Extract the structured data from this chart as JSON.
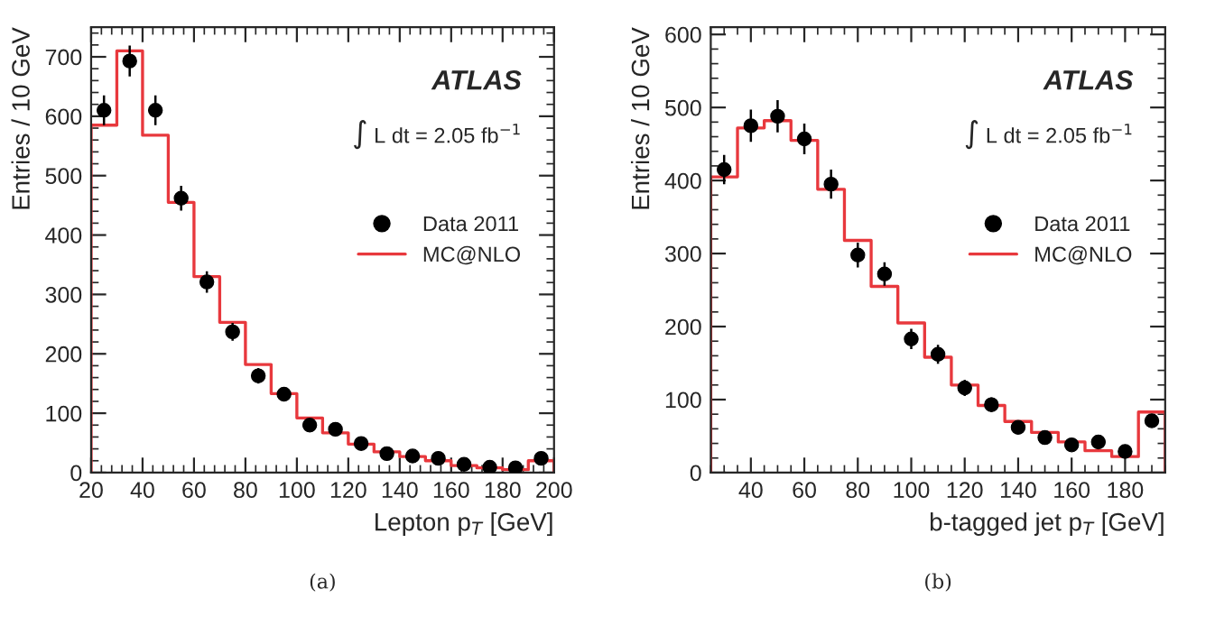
{
  "chart_data": [
    {
      "type": "histogram",
      "xlabel": "Lepton p$_{T}$ [GeV]",
      "ylabel": "Entries / 10 GeV",
      "bins": [
        20,
        30,
        40,
        50,
        60,
        70,
        80,
        90,
        100,
        110,
        120,
        130,
        140,
        150,
        160,
        170,
        180,
        190,
        200
      ],
      "series": [
        {
          "name": "Data 2011",
          "type": "scatter",
          "color": "#000000",
          "x": [
            25,
            35,
            45,
            55,
            65,
            75,
            85,
            95,
            105,
            115,
            125,
            135,
            145,
            155,
            165,
            175,
            185,
            195
          ],
          "values": [
            610,
            693,
            610,
            462,
            321,
            237,
            163,
            132,
            80,
            73,
            49,
            32,
            28,
            24,
            14,
            9,
            8,
            24
          ],
          "errors": [
            25,
            26,
            25,
            21,
            18,
            15,
            13,
            11,
            9,
            9,
            7,
            6,
            5,
            5,
            4,
            3,
            3,
            5
          ]
        },
        {
          "name": "MC@NLO",
          "color": "#e8383d",
          "values": [
            585,
            710,
            568,
            455,
            330,
            253,
            182,
            133,
            92,
            67,
            48,
            35,
            27,
            20,
            12,
            8,
            5,
            20
          ]
        }
      ],
      "xlim": [
        20,
        200
      ],
      "xticks": [
        20,
        40,
        60,
        80,
        100,
        120,
        140,
        160,
        180,
        200
      ],
      "ylim": [
        0,
        750
      ],
      "yticks": [
        0,
        100,
        200,
        300,
        400,
        500,
        600,
        700
      ],
      "legend": "right",
      "annotations": [
        "ATLAS",
        "∫ L dt = 2.05 fb$^{−1}$",
        "(a)"
      ]
    },
    {
      "type": "histogram",
      "xlabel": "b-tagged jet p$_{T}$ [GeV]",
      "ylabel": "Entries / 10 GeV",
      "bins": [
        25,
        35,
        45,
        55,
        65,
        75,
        85,
        95,
        105,
        115,
        125,
        135,
        145,
        155,
        165,
        175,
        185,
        195
      ],
      "series": [
        {
          "name": "Data 2011",
          "type": "scatter",
          "color": "#000000",
          "x": [
            30,
            40,
            50,
            60,
            70,
            80,
            90,
            100,
            110,
            120,
            130,
            140,
            150,
            160,
            170,
            180,
            190
          ],
          "values": [
            415,
            475,
            488,
            457,
            395,
            298,
            272,
            183,
            162,
            116,
            93,
            62,
            48,
            38,
            42,
            29,
            71
          ],
          "errors": [
            20,
            22,
            22,
            21,
            20,
            17,
            16,
            14,
            13,
            11,
            10,
            8,
            7,
            6,
            7,
            5,
            8
          ]
        },
        {
          "name": "MC@NLO",
          "color": "#e8383d",
          "values": [
            405,
            472,
            482,
            455,
            388,
            318,
            255,
            205,
            158,
            120,
            92,
            70,
            55,
            42,
            30,
            22,
            83
          ]
        }
      ],
      "xlim": [
        25,
        195
      ],
      "xticks": [
        40,
        60,
        80,
        100,
        120,
        140,
        160,
        180
      ],
      "ylim": [
        0,
        610
      ],
      "yticks": [
        0,
        100,
        200,
        300,
        400,
        500,
        600
      ],
      "legend": "right",
      "annotations": [
        "ATLAS",
        "∫ L dt = 2.05 fb$^{−1}$",
        "(b)"
      ]
    }
  ]
}
